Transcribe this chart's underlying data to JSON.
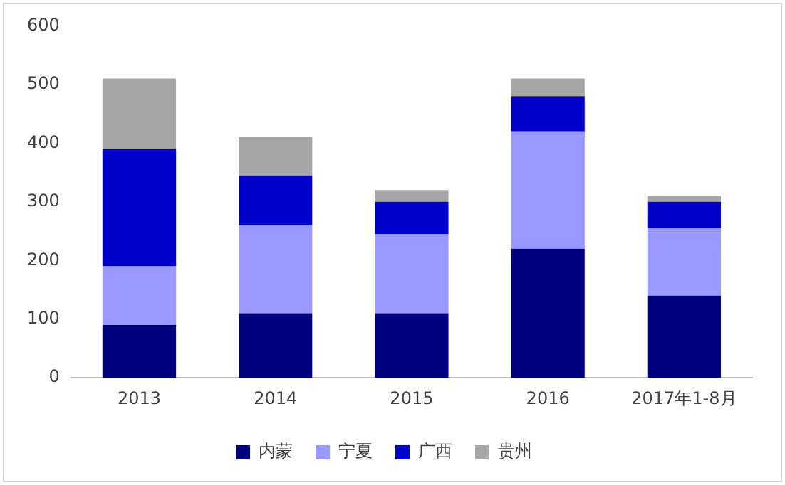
{
  "chart_data": {
    "type": "bar",
    "stacked": true,
    "categories": [
      "2013",
      "2014",
      "2015",
      "2016",
      "2017年1-8月"
    ],
    "series": [
      {
        "name": "内蒙",
        "color": "#000080",
        "values": [
          90,
          110,
          110,
          220,
          140
        ]
      },
      {
        "name": "宁夏",
        "color": "#9999ff",
        "values": [
          100,
          150,
          135,
          200,
          115
        ]
      },
      {
        "name": "广西",
        "color": "#0000cc",
        "values": [
          200,
          85,
          55,
          60,
          45
        ]
      },
      {
        "name": "贵州",
        "color": "#a6a6a6",
        "values": [
          120,
          65,
          20,
          30,
          10
        ]
      }
    ],
    "ylim": [
      0,
      600
    ],
    "yticks": [
      0,
      100,
      200,
      300,
      400,
      500,
      600
    ],
    "grid": false,
    "legend": "bottom"
  }
}
